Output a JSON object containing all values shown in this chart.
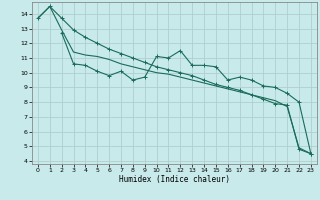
{
  "xlabel": "Humidex (Indice chaleur)",
  "bg_color": "#c8eaea",
  "grid_color": "#b0cfcf",
  "line_color": "#1a6b5a",
  "xlim": [
    -0.5,
    23.5
  ],
  "ylim": [
    3.8,
    14.8
  ],
  "yticks": [
    4,
    5,
    6,
    7,
    8,
    9,
    10,
    11,
    12,
    13,
    14
  ],
  "xticks": [
    0,
    1,
    2,
    3,
    4,
    5,
    6,
    7,
    8,
    9,
    10,
    11,
    12,
    13,
    14,
    15,
    16,
    17,
    18,
    19,
    20,
    21,
    22,
    23
  ],
  "line1_x": [
    0,
    1,
    2,
    3,
    4,
    5,
    6,
    7,
    8,
    9,
    10,
    11,
    12,
    13,
    14,
    15,
    16,
    17,
    18,
    19,
    20,
    21,
    22,
    23
  ],
  "line1_y": [
    13.7,
    14.5,
    13.7,
    12.9,
    12.4,
    12.0,
    11.6,
    11.3,
    11.0,
    10.7,
    10.4,
    10.2,
    10.0,
    9.8,
    9.5,
    9.2,
    9.0,
    8.8,
    8.5,
    8.2,
    7.9,
    7.8,
    4.8,
    4.5
  ],
  "line2_x": [
    2,
    3,
    4,
    5,
    6,
    7,
    8,
    9,
    10,
    11,
    12,
    13,
    14,
    15,
    16,
    17,
    18,
    19,
    20,
    21,
    22,
    23
  ],
  "line2_y": [
    12.7,
    10.6,
    10.5,
    10.1,
    9.8,
    10.1,
    9.5,
    9.7,
    11.1,
    11.0,
    11.5,
    10.5,
    10.5,
    10.4,
    9.5,
    9.7,
    9.5,
    9.1,
    9.0,
    8.6,
    8.0,
    4.5
  ],
  "line3_x": [
    0,
    1,
    2,
    3,
    4,
    5,
    6,
    7,
    8,
    9,
    10,
    11,
    12,
    13,
    14,
    15,
    16,
    17,
    18,
    19,
    20,
    21,
    22,
    23
  ],
  "line3_y": [
    13.7,
    14.5,
    12.9,
    11.4,
    11.2,
    11.1,
    10.9,
    10.6,
    10.4,
    10.2,
    10.0,
    9.9,
    9.7,
    9.5,
    9.3,
    9.1,
    8.9,
    8.7,
    8.5,
    8.3,
    8.1,
    7.7,
    4.9,
    4.5
  ]
}
